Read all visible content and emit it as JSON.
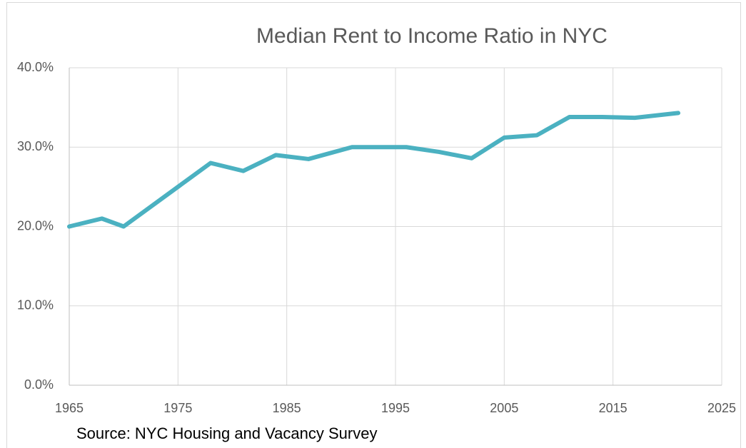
{
  "chart_data": {
    "type": "line",
    "title": "Median Rent to Income Ratio in NYC",
    "annotation": "Source: NYC Housing and Vacancy Survey",
    "x": [
      1965,
      1968,
      1970,
      1978,
      1981,
      1984,
      1987,
      1991,
      1996,
      1999,
      2002,
      2005,
      2008,
      2011,
      2014,
      2017,
      2021
    ],
    "series": [
      {
        "name": "Median Rent to Income Ratio",
        "color": "#4bb1c1",
        "values": [
          20.0,
          21.0,
          20.0,
          28.0,
          27.0,
          29.0,
          28.5,
          30.0,
          30.0,
          29.4,
          28.6,
          31.2,
          31.5,
          33.8,
          33.8,
          33.7,
          34.3
        ]
      }
    ],
    "xlim": [
      1965,
      2025
    ],
    "xticks": [
      1965,
      1975,
      1985,
      1995,
      2005,
      2015,
      2025
    ],
    "ylim": [
      0,
      40
    ],
    "yticks": [
      {
        "value": 0,
        "label": "0.0%"
      },
      {
        "value": 10,
        "label": "10.0%"
      },
      {
        "value": 20,
        "label": "20.0%"
      },
      {
        "value": 30,
        "label": "30.0%"
      },
      {
        "value": 40,
        "label": "40.0%"
      }
    ],
    "grid": true
  }
}
